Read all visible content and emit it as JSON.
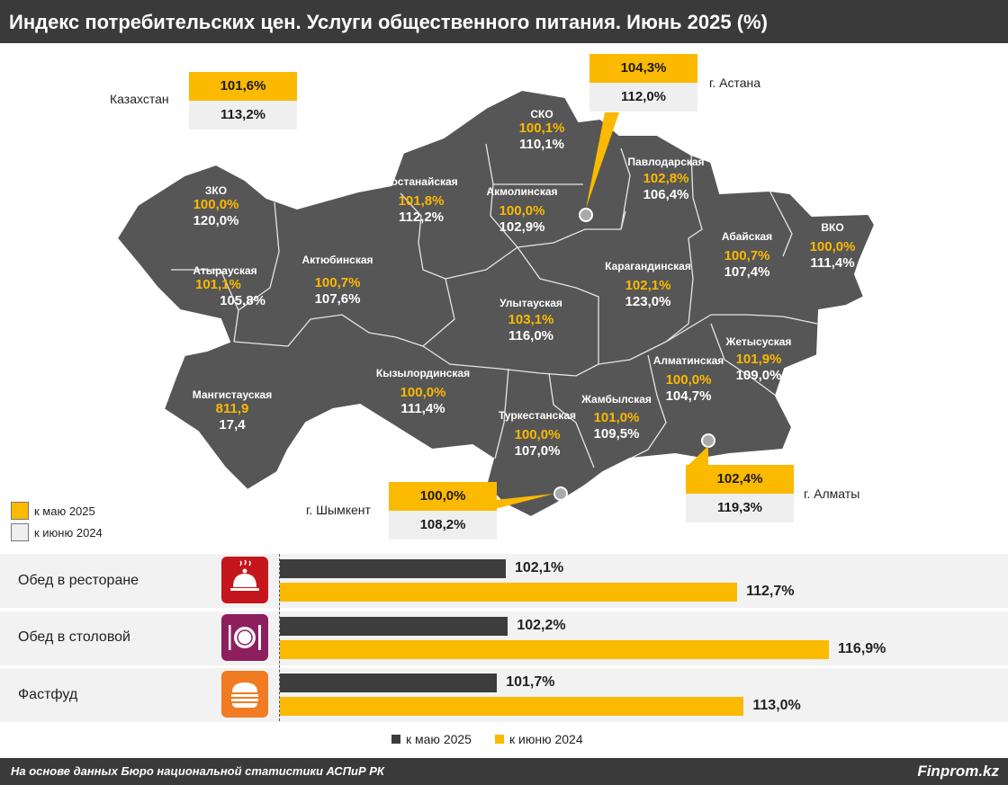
{
  "title": "Индекс потребительских цен. Услуги общественного питания. Июнь 2025 (%)",
  "source": "На основе данных Бюро национальной статистики АСПиР РК",
  "brand": "Finprom.kz",
  "colors": {
    "may": "#fbb900",
    "june": "#efefef",
    "dark": "#4a4a4a",
    "map": "#565656"
  },
  "callouts": {
    "kazakhstan": {
      "label": "Казахстан",
      "may": "101,6%",
      "june": "113,2%"
    },
    "astana": {
      "label": "г. Астана",
      "may": "104,3%",
      "june": "112,0%"
    },
    "almaty": {
      "label": "г. Алматы",
      "may": "102,4%",
      "june": "119,3%"
    },
    "shymkent": {
      "label": "г. Шымкент",
      "may": "100,0%",
      "june": "108,2%"
    }
  },
  "regions": [
    {
      "name": "ЗКО",
      "may": "100,0%",
      "june": "120,0%"
    },
    {
      "name": "Атырауская",
      "may": "101,1%",
      "june": "105,8%"
    },
    {
      "name": "Мангистауская",
      "may": "811,9",
      "june": "17,4"
    },
    {
      "name": "Актюбинская",
      "may": "100,7%",
      "june": "107,6%"
    },
    {
      "name": "Костанайская",
      "may": "101,8%",
      "june": "112,2%"
    },
    {
      "name": "СКО",
      "may": "100,1%",
      "june": "110,1%"
    },
    {
      "name": "Акмолинская",
      "may": "100,0%",
      "june": "102,9%"
    },
    {
      "name": "Павлодарская",
      "may": "102,8%",
      "june": "106,4%"
    },
    {
      "name": "ВКО",
      "may": "100,0%",
      "june": "111,4%"
    },
    {
      "name": "Абайская",
      "may": "100,7%",
      "june": "107,4%"
    },
    {
      "name": "Карагандинская",
      "may": "102,1%",
      "june": "123,0%"
    },
    {
      "name": "Улытауская",
      "may": "103,1%",
      "june": "116,0%"
    },
    {
      "name": "Кызылординская",
      "may": "100,0%",
      "june": "111,4%"
    },
    {
      "name": "Туркестанская",
      "may": "100,0%",
      "june": "107,0%"
    },
    {
      "name": "Жамбылская",
      "may": "101,0%",
      "june": "109,5%"
    },
    {
      "name": "Алматинская",
      "may": "100,0%",
      "june": "104,7%"
    },
    {
      "name": "Жетысуская",
      "may": "101,9%",
      "june": "109,0%"
    }
  ],
  "map_legend": {
    "may": "к маю 2025",
    "june": "к июню 2024"
  },
  "chart_data": {
    "type": "bar",
    "categories": [
      "Обед в ресторане",
      "Обед в столовой",
      "Фастфуд"
    ],
    "series": [
      {
        "name": "к маю 2025",
        "values": [
          102.1,
          102.2,
          101.7
        ],
        "labels": [
          "102,1%",
          "102,2%",
          "101,7%"
        ]
      },
      {
        "name": "к июню 2024",
        "values": [
          112.7,
          116.9,
          113.0
        ],
        "labels": [
          "112,7%",
          "116,9%",
          "113,0%"
        ]
      }
    ],
    "legend_position": "bottom-center",
    "icons": [
      "cloche-icon",
      "plate-cutlery-icon",
      "burger-icon"
    ]
  },
  "bar_legend": {
    "may": "к маю 2025",
    "june": "к июню 2024"
  }
}
